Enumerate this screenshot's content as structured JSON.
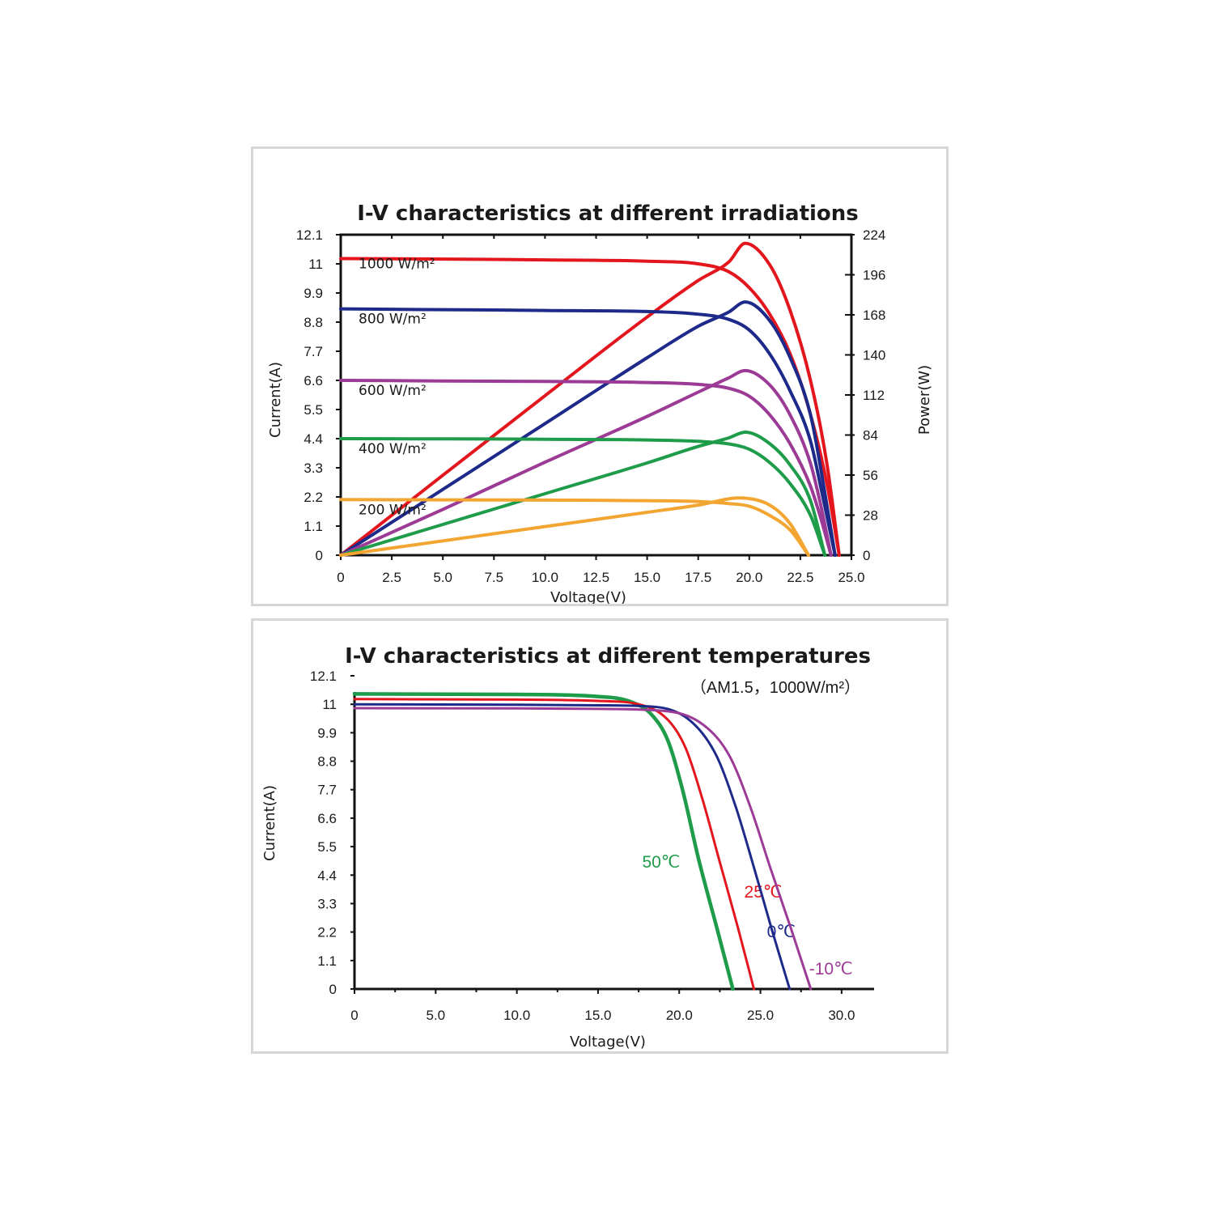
{
  "chart_data": [
    {
      "type": "line",
      "title": "I-V characteristics at different irradiations",
      "xlabel": "Voltage(V)",
      "ylabel": "Current(A)",
      "y2label": "Power(W)",
      "xlim": [
        0,
        25
      ],
      "ylim": [
        0,
        12.1
      ],
      "y2lim": [
        0,
        224
      ],
      "xticks": [
        "0",
        "2.5",
        "5.0",
        "7.5",
        "10.0",
        "12.5",
        "15.0",
        "17.5",
        "20.0",
        "22.5",
        "25.0"
      ],
      "yticks": [
        "0",
        "1.1",
        "2.2",
        "3.3",
        "4.4",
        "5.5",
        "6.6",
        "7.7",
        "8.8",
        "9.9",
        "11",
        "12.1"
      ],
      "y2ticks": [
        "0",
        "28",
        "56",
        "84",
        "112",
        "140",
        "168",
        "196",
        "224"
      ],
      "grid": false,
      "series": [
        {
          "name": "1000 W/m²",
          "color": "#e3161e",
          "isc": 11.2,
          "voc": 24.4,
          "vmp": 19.8,
          "pmax": 218,
          "iv": [
            [
              0,
              11.2
            ],
            [
              5,
              11.18
            ],
            [
              10,
              11.15
            ],
            [
              15,
              11.1
            ],
            [
              17.5,
              11.0
            ],
            [
              19.0,
              10.7
            ],
            [
              20.0,
              10.1
            ],
            [
              21.0,
              9.1
            ],
            [
              22.0,
              7.6
            ],
            [
              23.0,
              5.3
            ],
            [
              23.8,
              2.7
            ],
            [
              24.4,
              0
            ]
          ],
          "power": [
            [
              0,
              0
            ],
            [
              5,
              55.9
            ],
            [
              10,
              111.5
            ],
            [
              15,
              166.5
            ],
            [
              17.5,
              192
            ],
            [
              19.0,
              205
            ],
            [
              19.8,
              218
            ],
            [
              21.0,
              203
            ],
            [
              22.0,
              171
            ],
            [
              23.0,
              122
            ],
            [
              23.8,
              64
            ],
            [
              24.4,
              0
            ]
          ]
        },
        {
          "name": "800 W/m²",
          "color": "#1e2a8a",
          "isc": 9.3,
          "voc": 24.2,
          "vmp": 19.8,
          "pmax": 177,
          "iv": [
            [
              0,
              9.3
            ],
            [
              5,
              9.27
            ],
            [
              10,
              9.24
            ],
            [
              15,
              9.2
            ],
            [
              17.5,
              9.1
            ],
            [
              19.0,
              8.9
            ],
            [
              20.0,
              8.5
            ],
            [
              21.0,
              7.6
            ],
            [
              22.0,
              6.2
            ],
            [
              23.0,
              4.3
            ],
            [
              23.6,
              2.2
            ],
            [
              24.2,
              0
            ]
          ],
          "power": [
            [
              0,
              0
            ],
            [
              5,
              46
            ],
            [
              10,
              92
            ],
            [
              15,
              138
            ],
            [
              17.5,
              160
            ],
            [
              19.0,
              170
            ],
            [
              19.8,
              177
            ],
            [
              21.0,
              164
            ],
            [
              22.0,
              138
            ],
            [
              23.0,
              98
            ],
            [
              23.6,
              52
            ],
            [
              24.2,
              0
            ]
          ]
        },
        {
          "name": "600 W/m²",
          "color": "#9b3b96",
          "isc": 6.6,
          "voc": 24.0,
          "vmp": 19.8,
          "pmax": 129,
          "iv": [
            [
              0,
              6.6
            ],
            [
              5,
              6.58
            ],
            [
              10,
              6.56
            ],
            [
              15,
              6.52
            ],
            [
              17.5,
              6.45
            ],
            [
              19.0,
              6.3
            ],
            [
              20.0,
              6.0
            ],
            [
              21.0,
              5.3
            ],
            [
              22.0,
              4.2
            ],
            [
              23.0,
              2.6
            ],
            [
              23.5,
              1.4
            ],
            [
              24.0,
              0
            ]
          ],
          "power": [
            [
              0,
              0
            ],
            [
              5,
              32
            ],
            [
              10,
              65
            ],
            [
              15,
              97
            ],
            [
              17.5,
              114
            ],
            [
              19.0,
              124
            ],
            [
              19.8,
              129
            ],
            [
              21.0,
              119
            ],
            [
              22.0,
              98
            ],
            [
              23.0,
              64
            ],
            [
              23.5,
              35
            ],
            [
              24.0,
              0
            ]
          ]
        },
        {
          "name": "400 W/m²",
          "color": "#1f9c4a",
          "isc": 4.4,
          "voc": 23.7,
          "vmp": 19.8,
          "pmax": 86,
          "iv": [
            [
              0,
              4.4
            ],
            [
              5,
              4.39
            ],
            [
              10,
              4.38
            ],
            [
              15,
              4.35
            ],
            [
              17.5,
              4.3
            ],
            [
              19.0,
              4.2
            ],
            [
              20.0,
              4.0
            ],
            [
              21.0,
              3.5
            ],
            [
              22.0,
              2.7
            ],
            [
              23.0,
              1.5
            ],
            [
              23.7,
              0
            ]
          ],
          "power": [
            [
              0,
              0
            ],
            [
              5,
              21.5
            ],
            [
              10,
              43
            ],
            [
              15,
              64.5
            ],
            [
              17.5,
              76
            ],
            [
              19.0,
              82
            ],
            [
              19.8,
              86
            ],
            [
              21.0,
              78
            ],
            [
              22.0,
              63
            ],
            [
              23.0,
              38
            ],
            [
              23.7,
              0
            ]
          ]
        },
        {
          "name": "200 W/m²",
          "color": "#f2a531",
          "isc": 2.1,
          "voc": 22.9,
          "vmp": 19.5,
          "pmax": 40,
          "iv": [
            [
              0,
              2.1
            ],
            [
              5,
              2.09
            ],
            [
              10,
              2.08
            ],
            [
              15,
              2.06
            ],
            [
              17.5,
              2.03
            ],
            [
              19.0,
              1.95
            ],
            [
              20.0,
              1.85
            ],
            [
              21.0,
              1.5
            ],
            [
              22.0,
              0.95
            ],
            [
              22.9,
              0
            ]
          ],
          "power": [
            [
              0,
              0
            ],
            [
              5,
              10
            ],
            [
              10,
              20
            ],
            [
              15,
              30
            ],
            [
              17.5,
              35
            ],
            [
              19.5,
              40
            ],
            [
              21.0,
              35
            ],
            [
              22.0,
              22
            ],
            [
              22.9,
              0
            ]
          ]
        }
      ]
    },
    {
      "type": "line",
      "title": "I-V characteristics at different temperatures",
      "subtitle": "（AM1.5，1000W/m²）",
      "xlabel": "Voltage(V)",
      "ylabel": "Current(A)",
      "xlim": [
        0,
        32
      ],
      "ylim": [
        0,
        12.1
      ],
      "xticks": [
        "0",
        "5.0",
        "10.0",
        "15.0",
        "20.0",
        "25.0",
        "30.0"
      ],
      "yticks": [
        "0",
        "1.1",
        "2.2",
        "3.3",
        "4.4",
        "5.5",
        "6.6",
        "7.7",
        "8.8",
        "9.9",
        "11",
        "12.1"
      ],
      "grid": false,
      "series": [
        {
          "name": "50℃",
          "color": "#1f9c4a",
          "isc": 11.4,
          "voc": 23.3,
          "iv": [
            [
              0,
              11.4
            ],
            [
              10,
              11.38
            ],
            [
              15,
              11.3
            ],
            [
              17,
              11.1
            ],
            [
              18.3,
              10.6
            ],
            [
              19.3,
              9.6
            ],
            [
              20.2,
              7.7
            ],
            [
              21.2,
              5.0
            ],
            [
              22.3,
              2.4
            ],
            [
              23.3,
              0
            ]
          ]
        },
        {
          "name": "25℃",
          "color": "#e3161e",
          "isc": 11.2,
          "voc": 24.6,
          "iv": [
            [
              0,
              11.2
            ],
            [
              10,
              11.18
            ],
            [
              15,
              11.13
            ],
            [
              17.5,
              11.0
            ],
            [
              19.3,
              10.4
            ],
            [
              20.4,
              9.3
            ],
            [
              21.4,
              7.4
            ],
            [
              22.5,
              4.9
            ],
            [
              23.6,
              2.4
            ],
            [
              24.6,
              0
            ]
          ]
        },
        {
          "name": "0℃",
          "color": "#1e2a8a",
          "isc": 11.0,
          "voc": 26.8,
          "iv": [
            [
              0,
              11.0
            ],
            [
              10,
              10.98
            ],
            [
              15,
              10.96
            ],
            [
              18.5,
              10.9
            ],
            [
              20.8,
              10.3
            ],
            [
              22.3,
              9.0
            ],
            [
              23.5,
              7.0
            ],
            [
              24.6,
              4.7
            ],
            [
              25.7,
              2.3
            ],
            [
              26.8,
              0
            ]
          ]
        },
        {
          "name": "-10℃",
          "color": "#9b3b96",
          "isc": 10.85,
          "voc": 28.1,
          "iv": [
            [
              0,
              10.85
            ],
            [
              10,
              10.84
            ],
            [
              15,
              10.82
            ],
            [
              19,
              10.75
            ],
            [
              21.5,
              10.2
            ],
            [
              23.1,
              9.0
            ],
            [
              24.4,
              7.0
            ],
            [
              25.6,
              4.7
            ],
            [
              26.9,
              2.3
            ],
            [
              28.1,
              0
            ]
          ]
        }
      ]
    }
  ]
}
